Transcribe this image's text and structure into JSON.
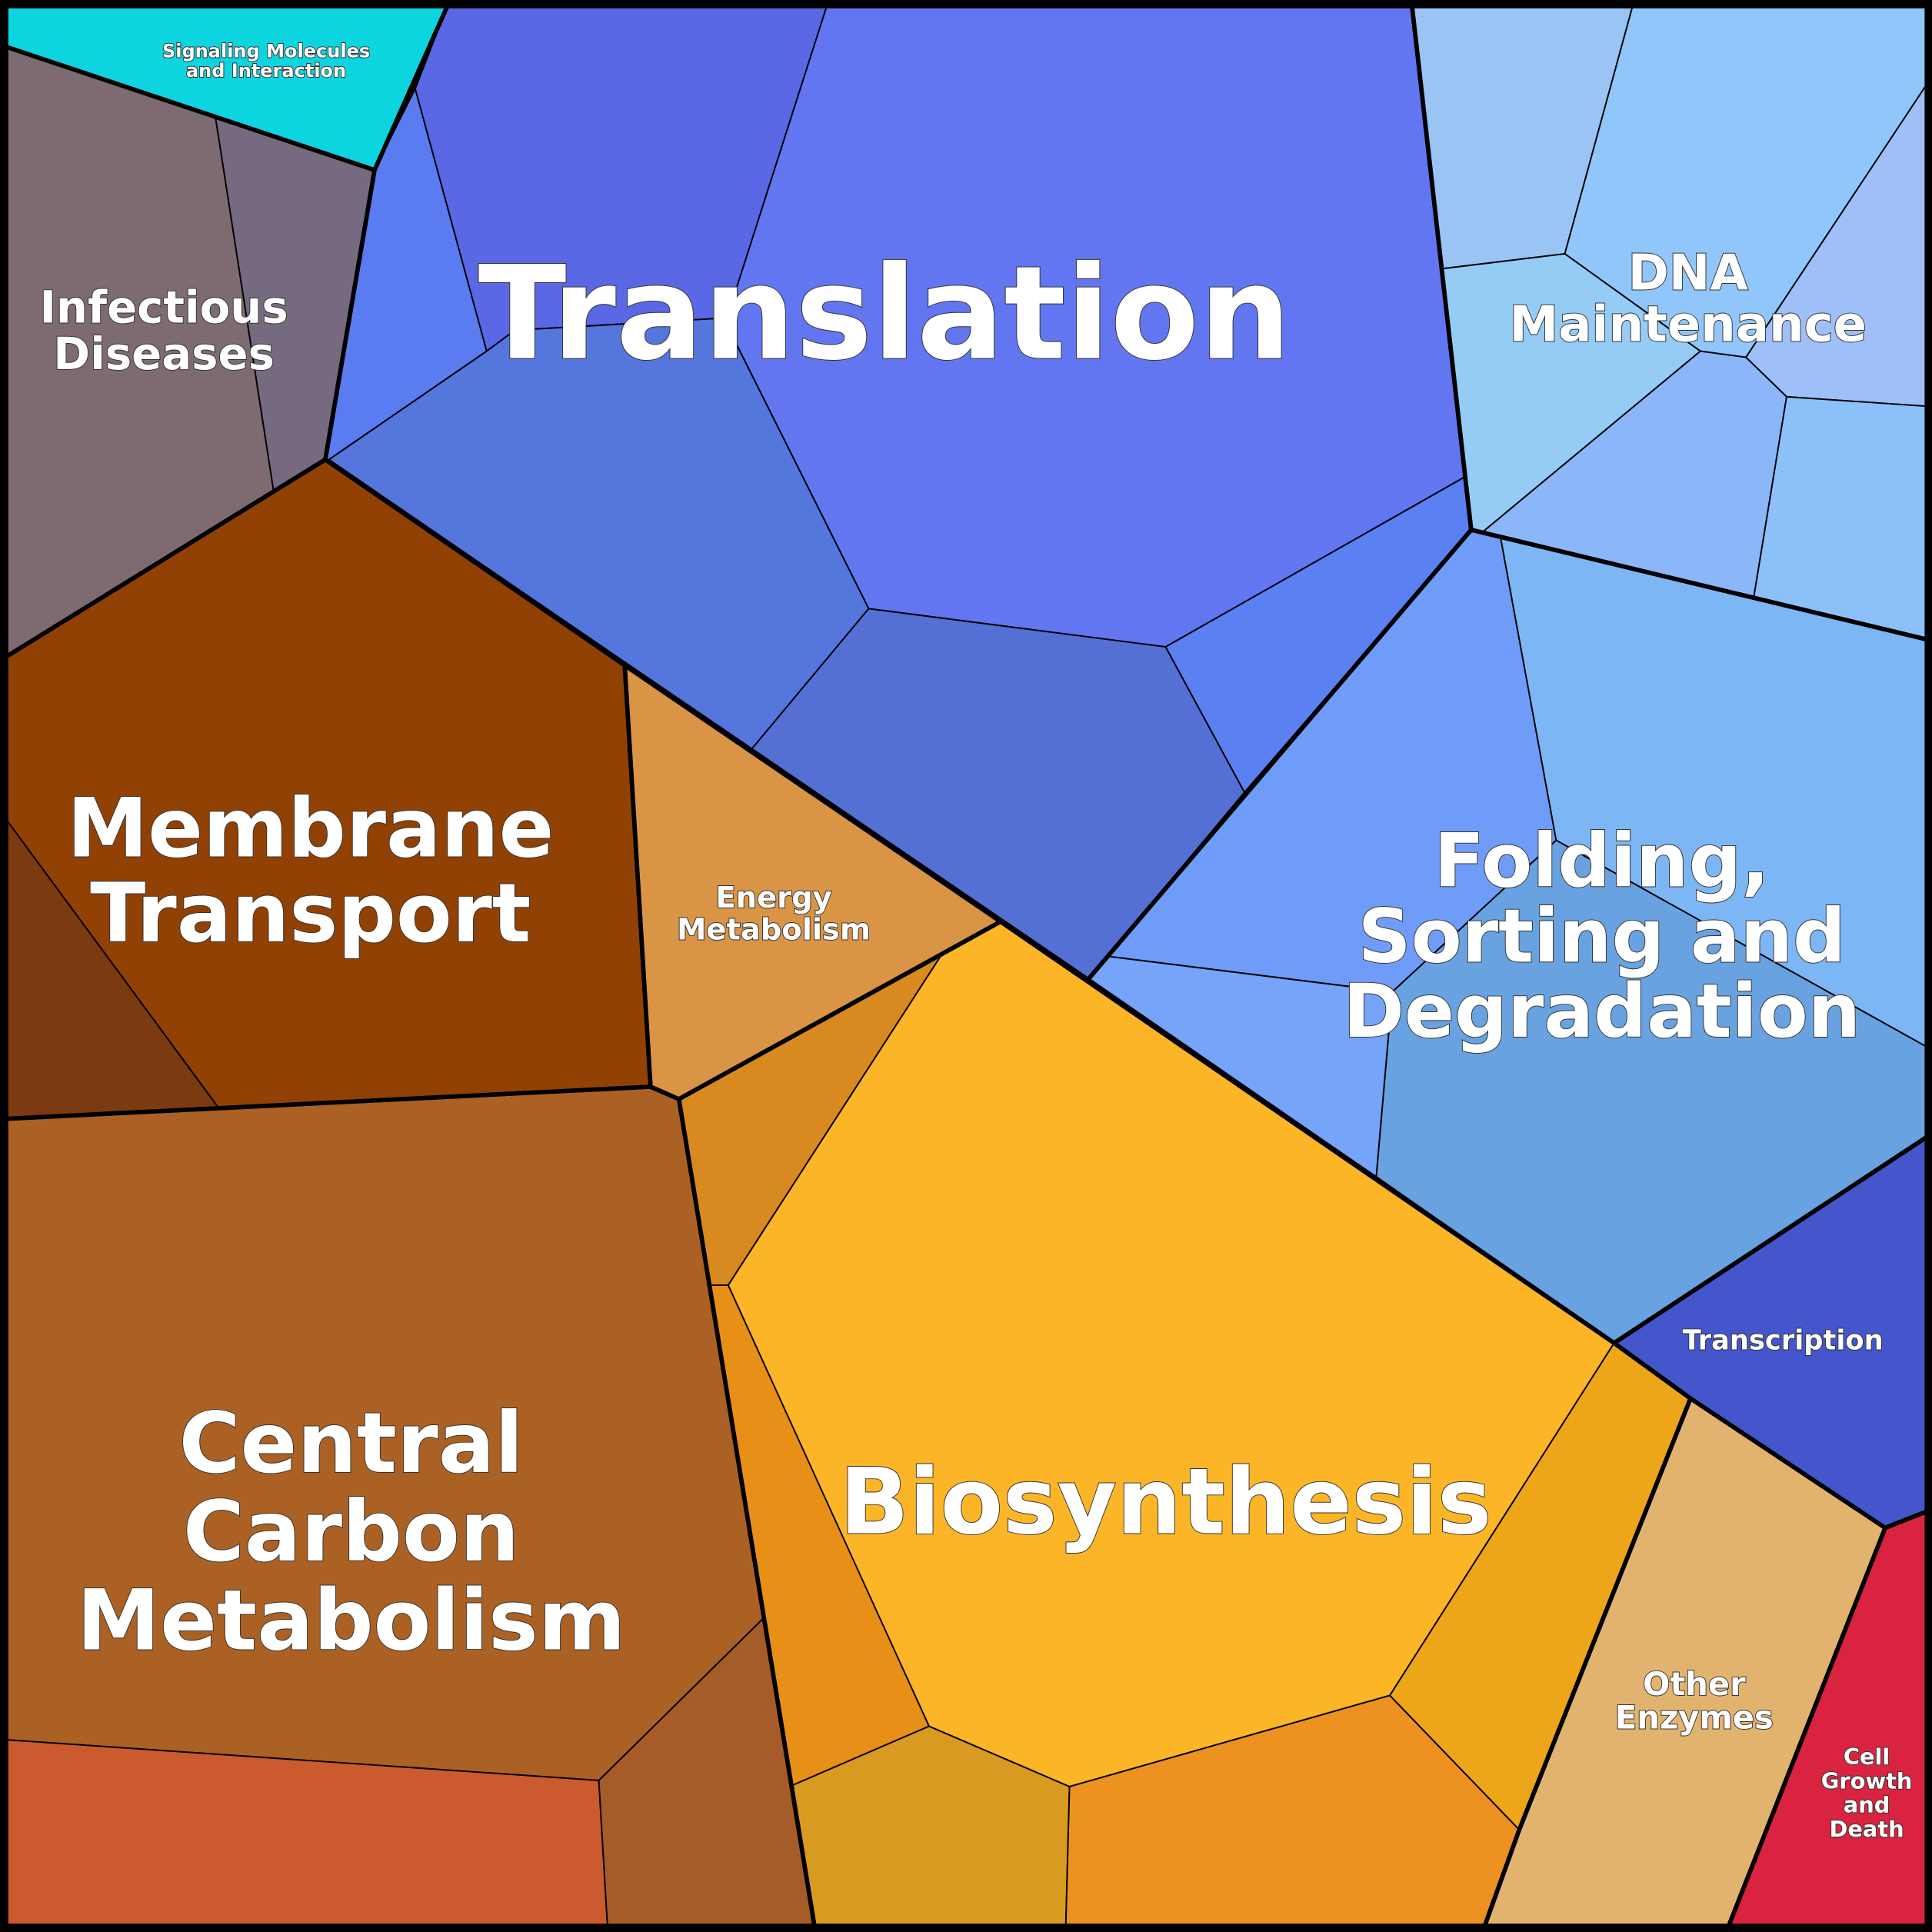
{
  "regions": [
    {
      "label_lines": [
        "Signaling Molecules",
        "and Interaction"
      ]
    },
    {
      "label_lines": [
        "Infectious",
        "Diseases"
      ]
    },
    {
      "label_lines": [
        "Translation"
      ]
    },
    {
      "label_lines": [
        "DNA",
        "Maintenance"
      ]
    },
    {
      "label_lines": [
        "Membrane",
        "Transport"
      ]
    },
    {
      "label_lines": [
        "Energy",
        "Metabolism"
      ]
    },
    {
      "label_lines": [
        "Folding,",
        "Sorting and",
        "Degradation"
      ]
    },
    {
      "label_lines": [
        "Transcription"
      ]
    },
    {
      "label_lines": [
        "Central",
        "Carbon",
        "Metabolism"
      ]
    },
    {
      "label_lines": [
        "Biosynthesis"
      ]
    },
    {
      "label_lines": [
        "Other",
        "Enzymes"
      ]
    },
    {
      "label_lines": [
        "Cell",
        "Growth",
        "and",
        "Death"
      ]
    }
  ]
}
